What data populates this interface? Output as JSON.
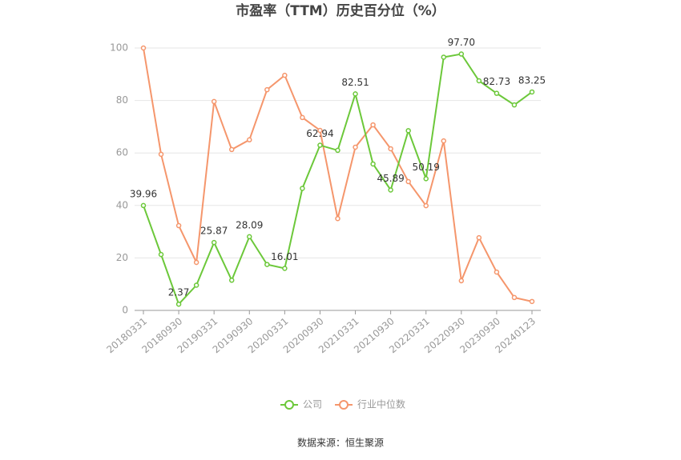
{
  "chart_data": {
    "type": "line",
    "title": "市盈率（TTM）历史百分位（%）",
    "categories": [
      "20180331",
      null,
      "20180930",
      null,
      "20190331",
      null,
      "20190930",
      null,
      "20200331",
      null,
      "20200930",
      null,
      "20210331",
      null,
      "20210930",
      null,
      "20220331",
      null,
      "20220930",
      null,
      "20230930",
      null,
      "20240123"
    ],
    "series": [
      {
        "name": "公司",
        "color": "#6cc83a",
        "values": [
          39.96,
          21.3,
          2.37,
          9.6,
          25.87,
          11.5,
          28.09,
          17.5,
          16.01,
          46.5,
          62.94,
          61.0,
          82.51,
          55.8,
          45.89,
          68.5,
          50.19,
          96.5,
          97.7,
          87.5,
          82.73,
          78.3,
          83.25
        ],
        "value_labels": [
          "39.96",
          null,
          "2.37",
          null,
          "25.87",
          null,
          "28.09",
          null,
          "16.01",
          null,
          "62.94",
          null,
          "82.51",
          null,
          "45.89",
          null,
          "50.19",
          null,
          "97.70",
          null,
          "82.73",
          null,
          "83.25"
        ]
      },
      {
        "name": "行业中位数",
        "color": "#f5966c",
        "values": [
          100,
          59.5,
          32.3,
          18.3,
          79.6,
          61.3,
          65,
          84.1,
          89.6,
          73.5,
          68.6,
          35,
          62.2,
          70.7,
          61.6,
          49.1,
          39.9,
          64.6,
          11.3,
          27.7,
          14.6,
          4.9,
          3.4
        ]
      }
    ],
    "ylim": [
      0,
      100
    ],
    "yticks": [
      0,
      20,
      40,
      60,
      80,
      100
    ],
    "grid": true,
    "source": "数据来源：恒生聚源"
  }
}
